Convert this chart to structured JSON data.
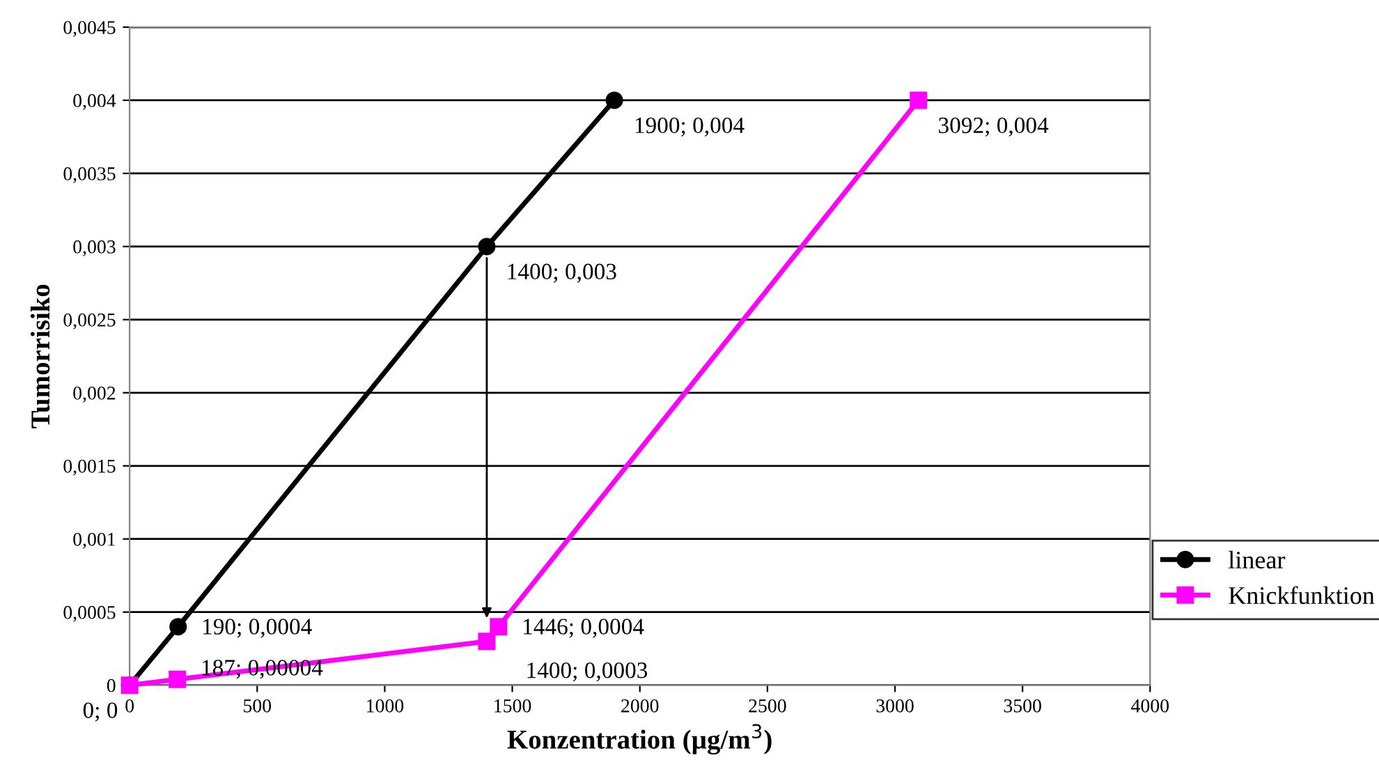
{
  "chart_data": {
    "type": "line",
    "xlabel": "Konzentration (µg/m$^{3}$)",
    "ylabel": "Tumorrisiko",
    "series": [
      {
        "name": "linear",
        "color": "#000000",
        "marker": "circle",
        "x": [
          0,
          190,
          1400,
          1900
        ],
        "values": [
          0,
          0.0004,
          0.003,
          0.004
        ],
        "value_labels": [
          "0; 0",
          "190; 0,0004",
          "1400; 0,003",
          "1900; 0,004"
        ]
      },
      {
        "name": "Knickfunktion",
        "color": "#ff00ff",
        "marker": "square",
        "x": [
          0,
          187,
          1400,
          1446,
          3092
        ],
        "values": [
          0,
          4e-05,
          0.0003,
          0.0004,
          0.004
        ],
        "value_labels": [
          null,
          "187; 0,00004",
          "1400; 0,0003",
          "1446; 0,0004",
          "3092; 0,004"
        ]
      }
    ],
    "xlim": [
      0,
      4000
    ],
    "xticks": [
      0,
      500,
      1000,
      1500,
      2000,
      2500,
      3000,
      3500,
      4000
    ],
    "ylim": [
      0,
      0.0045
    ],
    "yticks": [
      {
        "value": 0,
        "label": "0"
      },
      {
        "value": 0.0005,
        "label": "0,0005"
      },
      {
        "value": 0.001,
        "label": "0,001"
      },
      {
        "value": 0.0015,
        "label": "0,0015"
      },
      {
        "value": 0.002,
        "label": "0,002"
      },
      {
        "value": 0.0025,
        "label": "0,0025"
      },
      {
        "value": 0.003,
        "label": "0,003"
      },
      {
        "value": 0.0035,
        "label": "0,0035"
      },
      {
        "value": 0.004,
        "label": "0,004"
      },
      {
        "value": 0.0045,
        "label": "0,0045"
      }
    ],
    "grid": "y",
    "legend": "right",
    "line_style": "solid"
  }
}
